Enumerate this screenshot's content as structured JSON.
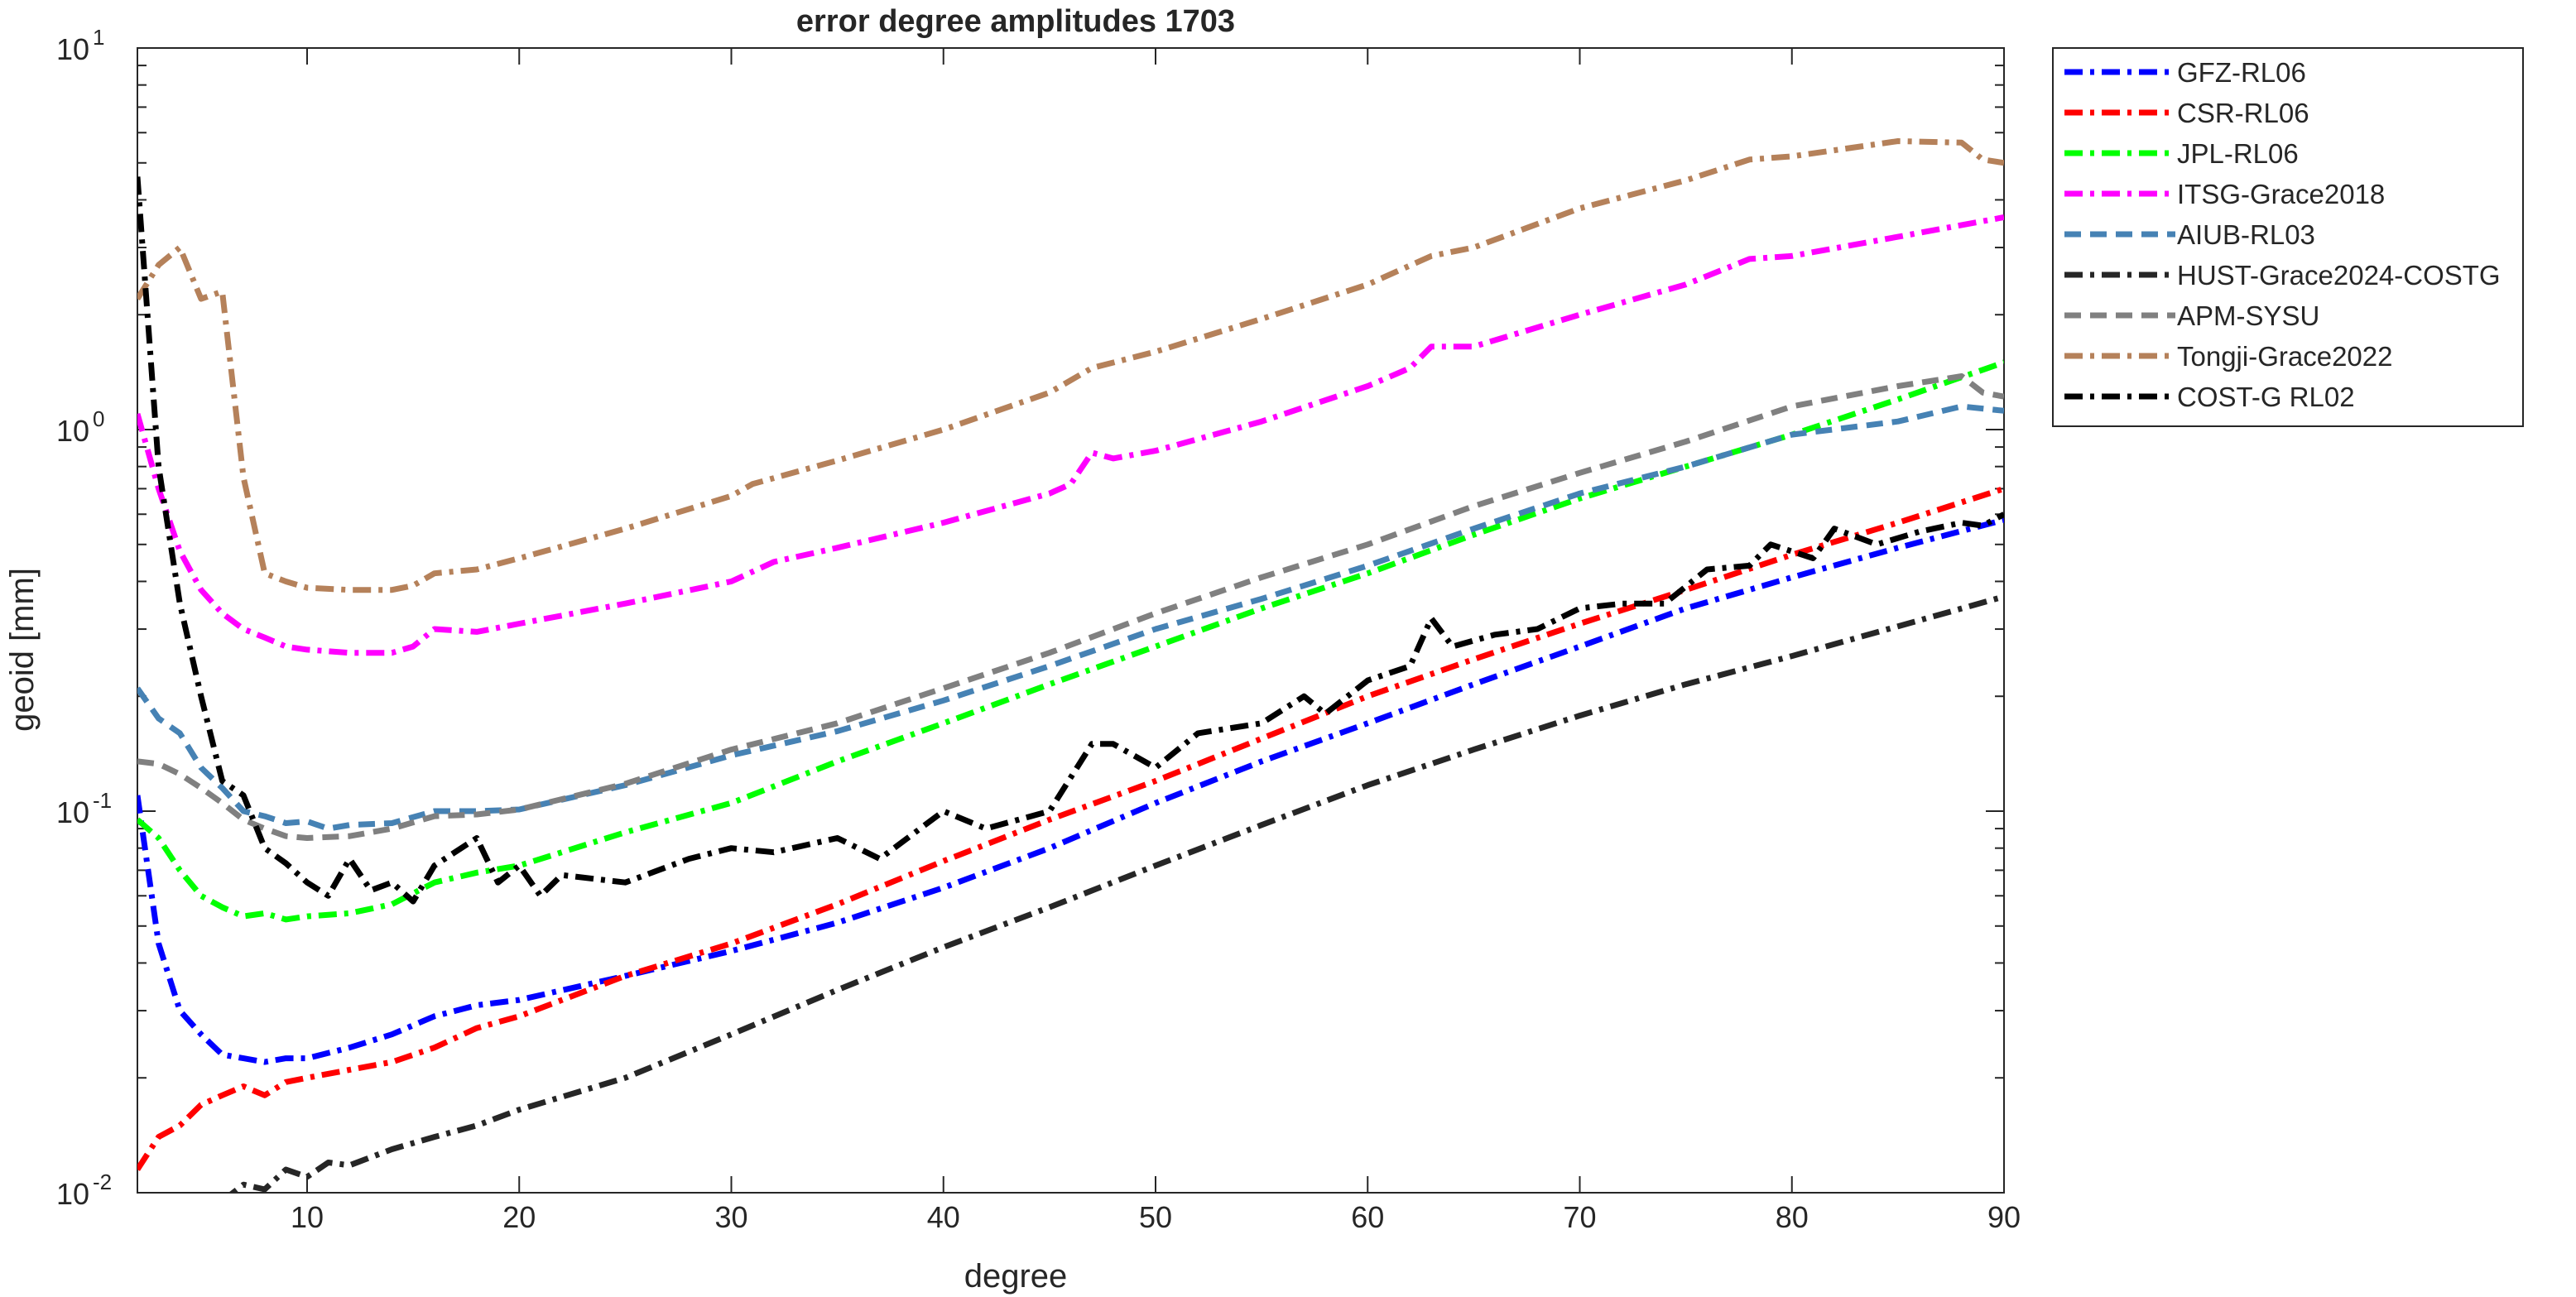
{
  "chart_data": {
    "type": "line",
    "title": "error degree amplitudes 1703",
    "xlabel": "degree",
    "ylabel": "geoid [mm]",
    "xlim": [
      2,
      90
    ],
    "ylim": [
      0.01,
      10
    ],
    "yscale": "log",
    "xticks": [
      10,
      20,
      30,
      40,
      50,
      60,
      70,
      80,
      90
    ],
    "yticks": [
      {
        "value": 0.01,
        "base": "10",
        "exp": "-2"
      },
      {
        "value": 0.1,
        "base": "10",
        "exp": "-1"
      },
      {
        "value": 1,
        "base": "10",
        "exp": "0"
      },
      {
        "value": 10,
        "base": "10",
        "exp": "1"
      }
    ],
    "grid": false,
    "legend_position": "outside-right-top",
    "series": [
      {
        "name": "GFZ-RL06",
        "color": "#0000ff",
        "dash": "dashdot",
        "points": [
          [
            2,
            0.11
          ],
          [
            3,
            0.045
          ],
          [
            4,
            0.03
          ],
          [
            5,
            0.026
          ],
          [
            6,
            0.023
          ],
          [
            7,
            0.0225
          ],
          [
            8,
            0.022
          ],
          [
            9,
            0.0225
          ],
          [
            10,
            0.0225
          ],
          [
            12,
            0.024
          ],
          [
            14,
            0.026
          ],
          [
            16,
            0.029
          ],
          [
            18,
            0.031
          ],
          [
            20,
            0.032
          ],
          [
            25,
            0.037
          ],
          [
            30,
            0.043
          ],
          [
            35,
            0.051
          ],
          [
            40,
            0.063
          ],
          [
            45,
            0.08
          ],
          [
            50,
            0.105
          ],
          [
            55,
            0.135
          ],
          [
            60,
            0.17
          ],
          [
            65,
            0.215
          ],
          [
            70,
            0.27
          ],
          [
            75,
            0.34
          ],
          [
            80,
            0.41
          ],
          [
            85,
            0.49
          ],
          [
            90,
            0.58
          ]
        ]
      },
      {
        "name": "CSR-RL06",
        "color": "#ff0000",
        "dash": "dashdot",
        "points": [
          [
            2,
            0.0115
          ],
          [
            3,
            0.014
          ],
          [
            4,
            0.015
          ],
          [
            5,
            0.017
          ],
          [
            6,
            0.018
          ],
          [
            7,
            0.019
          ],
          [
            8,
            0.018
          ],
          [
            9,
            0.0195
          ],
          [
            10,
            0.02
          ],
          [
            12,
            0.021
          ],
          [
            14,
            0.022
          ],
          [
            16,
            0.024
          ],
          [
            18,
            0.027
          ],
          [
            20,
            0.029
          ],
          [
            25,
            0.037
          ],
          [
            30,
            0.045
          ],
          [
            35,
            0.057
          ],
          [
            40,
            0.074
          ],
          [
            45,
            0.095
          ],
          [
            50,
            0.12
          ],
          [
            55,
            0.155
          ],
          [
            60,
            0.2
          ],
          [
            65,
            0.25
          ],
          [
            70,
            0.31
          ],
          [
            75,
            0.38
          ],
          [
            80,
            0.47
          ],
          [
            85,
            0.57
          ],
          [
            90,
            0.7
          ]
        ]
      },
      {
        "name": "JPL-RL06",
        "color": "#00ff00",
        "dash": "dashdot",
        "points": [
          [
            2,
            0.095
          ],
          [
            3,
            0.085
          ],
          [
            4,
            0.07
          ],
          [
            5,
            0.06
          ],
          [
            6,
            0.056
          ],
          [
            7,
            0.053
          ],
          [
            8,
            0.054
          ],
          [
            9,
            0.052
          ],
          [
            10,
            0.053
          ],
          [
            12,
            0.054
          ],
          [
            14,
            0.057
          ],
          [
            16,
            0.065
          ],
          [
            18,
            0.069
          ],
          [
            20,
            0.072
          ],
          [
            25,
            0.088
          ],
          [
            30,
            0.105
          ],
          [
            35,
            0.135
          ],
          [
            40,
            0.17
          ],
          [
            45,
            0.215
          ],
          [
            50,
            0.27
          ],
          [
            55,
            0.34
          ],
          [
            60,
            0.42
          ],
          [
            65,
            0.53
          ],
          [
            70,
            0.66
          ],
          [
            75,
            0.8
          ],
          [
            80,
            0.97
          ],
          [
            85,
            1.2
          ],
          [
            90,
            1.5
          ]
        ]
      },
      {
        "name": "ITSG-Grace2018",
        "color": "#ff00ff",
        "dash": "dashdot",
        "points": [
          [
            2,
            1.1
          ],
          [
            3,
            0.7
          ],
          [
            4,
            0.48
          ],
          [
            5,
            0.38
          ],
          [
            6,
            0.33
          ],
          [
            7,
            0.3
          ],
          [
            8,
            0.285
          ],
          [
            9,
            0.27
          ],
          [
            10,
            0.265
          ],
          [
            12,
            0.26
          ],
          [
            14,
            0.26
          ],
          [
            15,
            0.27
          ],
          [
            16,
            0.3
          ],
          [
            18,
            0.295
          ],
          [
            20,
            0.31
          ],
          [
            25,
            0.35
          ],
          [
            30,
            0.4
          ],
          [
            32,
            0.45
          ],
          [
            35,
            0.49
          ],
          [
            40,
            0.57
          ],
          [
            45,
            0.68
          ],
          [
            46,
            0.72
          ],
          [
            47,
            0.87
          ],
          [
            48,
            0.84
          ],
          [
            50,
            0.88
          ],
          [
            55,
            1.05
          ],
          [
            60,
            1.3
          ],
          [
            62,
            1.45
          ],
          [
            63,
            1.65
          ],
          [
            65,
            1.65
          ],
          [
            70,
            2.0
          ],
          [
            75,
            2.4
          ],
          [
            78,
            2.8
          ],
          [
            80,
            2.85
          ],
          [
            85,
            3.2
          ],
          [
            90,
            3.6
          ]
        ]
      },
      {
        "name": "AIUB-RL03",
        "color": "#4682b4",
        "dash": "dashed",
        "points": [
          [
            2,
            0.21
          ],
          [
            3,
            0.175
          ],
          [
            4,
            0.16
          ],
          [
            5,
            0.13
          ],
          [
            6,
            0.115
          ],
          [
            7,
            0.1
          ],
          [
            8,
            0.097
          ],
          [
            9,
            0.093
          ],
          [
            10,
            0.094
          ],
          [
            11,
            0.09
          ],
          [
            12,
            0.092
          ],
          [
            14,
            0.093
          ],
          [
            16,
            0.1
          ],
          [
            18,
            0.1
          ],
          [
            20,
            0.101
          ],
          [
            25,
            0.117
          ],
          [
            30,
            0.14
          ],
          [
            35,
            0.162
          ],
          [
            40,
            0.195
          ],
          [
            45,
            0.24
          ],
          [
            50,
            0.3
          ],
          [
            55,
            0.36
          ],
          [
            60,
            0.44
          ],
          [
            65,
            0.55
          ],
          [
            70,
            0.68
          ],
          [
            75,
            0.8
          ],
          [
            80,
            0.97
          ],
          [
            85,
            1.05
          ],
          [
            88,
            1.15
          ],
          [
            90,
            1.12
          ]
        ]
      },
      {
        "name": "HUST-Grace2024-COSTG",
        "color": "#262626",
        "dash": "dashdot",
        "points": [
          [
            6,
            0.0095
          ],
          [
            7,
            0.0105
          ],
          [
            8,
            0.0102
          ],
          [
            9,
            0.0115
          ],
          [
            10,
            0.011
          ],
          [
            11,
            0.012
          ],
          [
            12,
            0.0118
          ],
          [
            14,
            0.013
          ],
          [
            16,
            0.014
          ],
          [
            18,
            0.015
          ],
          [
            20,
            0.0165
          ],
          [
            25,
            0.02
          ],
          [
            30,
            0.026
          ],
          [
            35,
            0.034
          ],
          [
            40,
            0.044
          ],
          [
            45,
            0.056
          ],
          [
            50,
            0.072
          ],
          [
            55,
            0.092
          ],
          [
            60,
            0.117
          ],
          [
            65,
            0.145
          ],
          [
            70,
            0.178
          ],
          [
            75,
            0.215
          ],
          [
            80,
            0.255
          ],
          [
            85,
            0.305
          ],
          [
            90,
            0.365
          ]
        ]
      },
      {
        "name": "APM-SYSU",
        "color": "#808080",
        "dash": "dashed",
        "points": [
          [
            2,
            0.135
          ],
          [
            3,
            0.133
          ],
          [
            4,
            0.125
          ],
          [
            5,
            0.115
          ],
          [
            6,
            0.105
          ],
          [
            7,
            0.095
          ],
          [
            8,
            0.09
          ],
          [
            9,
            0.086
          ],
          [
            10,
            0.085
          ],
          [
            12,
            0.086
          ],
          [
            14,
            0.09
          ],
          [
            16,
            0.097
          ],
          [
            18,
            0.098
          ],
          [
            20,
            0.101
          ],
          [
            25,
            0.118
          ],
          [
            30,
            0.145
          ],
          [
            35,
            0.17
          ],
          [
            40,
            0.21
          ],
          [
            45,
            0.26
          ],
          [
            50,
            0.33
          ],
          [
            55,
            0.41
          ],
          [
            60,
            0.5
          ],
          [
            65,
            0.63
          ],
          [
            70,
            0.77
          ],
          [
            75,
            0.93
          ],
          [
            80,
            1.15
          ],
          [
            85,
            1.3
          ],
          [
            88,
            1.38
          ],
          [
            89,
            1.25
          ],
          [
            90,
            1.22
          ]
        ]
      },
      {
        "name": "Tongji-Grace2022",
        "color": "#b5815a",
        "dash": "dashdot",
        "points": [
          [
            2,
            2.2
          ],
          [
            3,
            2.7
          ],
          [
            4,
            3.0
          ],
          [
            5,
            2.2
          ],
          [
            6,
            2.3
          ],
          [
            7,
            0.75
          ],
          [
            8,
            0.42
          ],
          [
            9,
            0.4
          ],
          [
            10,
            0.385
          ],
          [
            12,
            0.38
          ],
          [
            14,
            0.38
          ],
          [
            15,
            0.39
          ],
          [
            16,
            0.42
          ],
          [
            18,
            0.43
          ],
          [
            20,
            0.46
          ],
          [
            25,
            0.55
          ],
          [
            30,
            0.67
          ],
          [
            31,
            0.72
          ],
          [
            35,
            0.83
          ],
          [
            40,
            1.0
          ],
          [
            45,
            1.25
          ],
          [
            47,
            1.45
          ],
          [
            50,
            1.6
          ],
          [
            55,
            1.95
          ],
          [
            60,
            2.4
          ],
          [
            63,
            2.85
          ],
          [
            65,
            3.0
          ],
          [
            70,
            3.8
          ],
          [
            75,
            4.5
          ],
          [
            78,
            5.1
          ],
          [
            80,
            5.2
          ],
          [
            85,
            5.7
          ],
          [
            88,
            5.65
          ],
          [
            89,
            5.1
          ],
          [
            90,
            5.0
          ]
        ]
      },
      {
        "name": "COST-G RL02",
        "color": "#000000",
        "dash": "dashdot",
        "points": [
          [
            2,
            4.6
          ],
          [
            3,
            0.8
          ],
          [
            4,
            0.35
          ],
          [
            5,
            0.2
          ],
          [
            6,
            0.12
          ],
          [
            7,
            0.11
          ],
          [
            8,
            0.08
          ],
          [
            9,
            0.073
          ],
          [
            10,
            0.065
          ],
          [
            11,
            0.06
          ],
          [
            12,
            0.075
          ],
          [
            13,
            0.062
          ],
          [
            14,
            0.065
          ],
          [
            15,
            0.058
          ],
          [
            16,
            0.072
          ],
          [
            18,
            0.085
          ],
          [
            19,
            0.065
          ],
          [
            20,
            0.072
          ],
          [
            21,
            0.06
          ],
          [
            22,
            0.068
          ],
          [
            25,
            0.065
          ],
          [
            28,
            0.075
          ],
          [
            30,
            0.08
          ],
          [
            32,
            0.078
          ],
          [
            35,
            0.085
          ],
          [
            37,
            0.075
          ],
          [
            40,
            0.1
          ],
          [
            42,
            0.09
          ],
          [
            45,
            0.1
          ],
          [
            47,
            0.15
          ],
          [
            48,
            0.15
          ],
          [
            50,
            0.13
          ],
          [
            52,
            0.16
          ],
          [
            55,
            0.17
          ],
          [
            57,
            0.2
          ],
          [
            58,
            0.18
          ],
          [
            60,
            0.22
          ],
          [
            62,
            0.24
          ],
          [
            63,
            0.32
          ],
          [
            64,
            0.27
          ],
          [
            66,
            0.29
          ],
          [
            68,
            0.3
          ],
          [
            70,
            0.34
          ],
          [
            72,
            0.35
          ],
          [
            74,
            0.35
          ],
          [
            76,
            0.43
          ],
          [
            78,
            0.44
          ],
          [
            79,
            0.5
          ],
          [
            81,
            0.46
          ],
          [
            82,
            0.55
          ],
          [
            84,
            0.5
          ],
          [
            86,
            0.54
          ],
          [
            88,
            0.57
          ],
          [
            89,
            0.56
          ],
          [
            90,
            0.6
          ]
        ]
      }
    ]
  }
}
